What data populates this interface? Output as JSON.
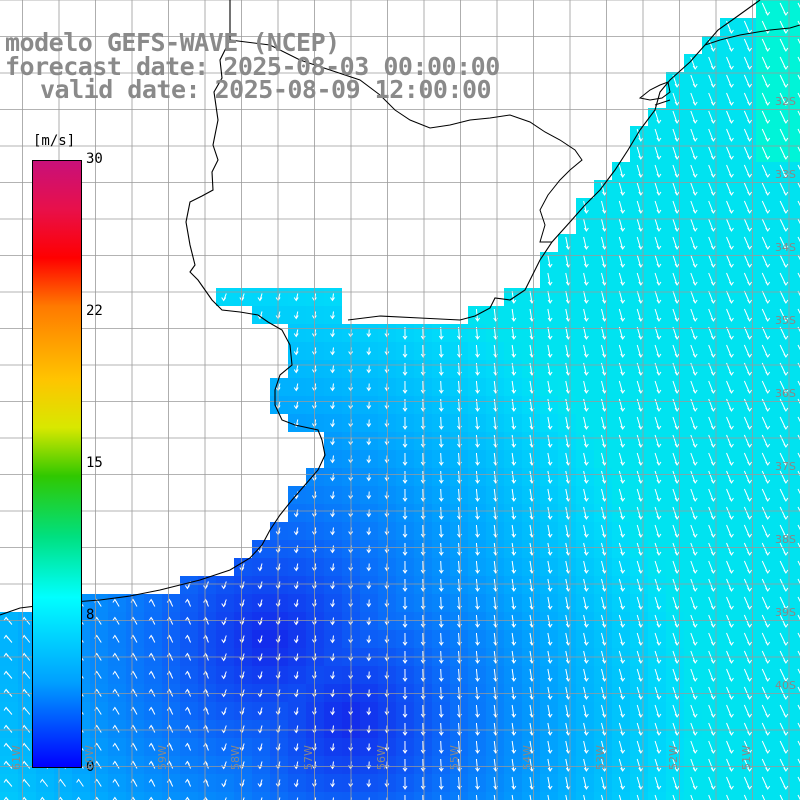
{
  "title": {
    "line1": "modelo GEFS-WAVE (NCEP)",
    "line2": "forecast date: 2025-08-03 00:00:00",
    "line3": "valid date: 2025-08-09 12:00:00"
  },
  "colorbar": {
    "unit": "[m/s]",
    "labels": [
      "30",
      "22",
      "15",
      "8",
      "0"
    ],
    "min": 0,
    "max": 30,
    "colors": [
      "#c8107a",
      "#ff0000",
      "#ff7a00",
      "#ffc400",
      "#30c800",
      "#00ffff",
      "#00a0ff",
      "#0000ff"
    ]
  },
  "lat_labels": [
    "32S",
    "33S",
    "34S",
    "35S",
    "36S",
    "37S",
    "38S",
    "39S",
    "40S"
  ],
  "lon_labels": [
    "61W",
    "60W",
    "59W",
    "58W",
    "57W",
    "56W",
    "55W",
    "54W",
    "53W",
    "52W",
    "51W"
  ],
  "colors": {
    "land": "#ffffff",
    "coast": "#000000",
    "grid": "#9a9a9a",
    "arrow": "#ffffff",
    "title": "#8a8a8a"
  }
}
